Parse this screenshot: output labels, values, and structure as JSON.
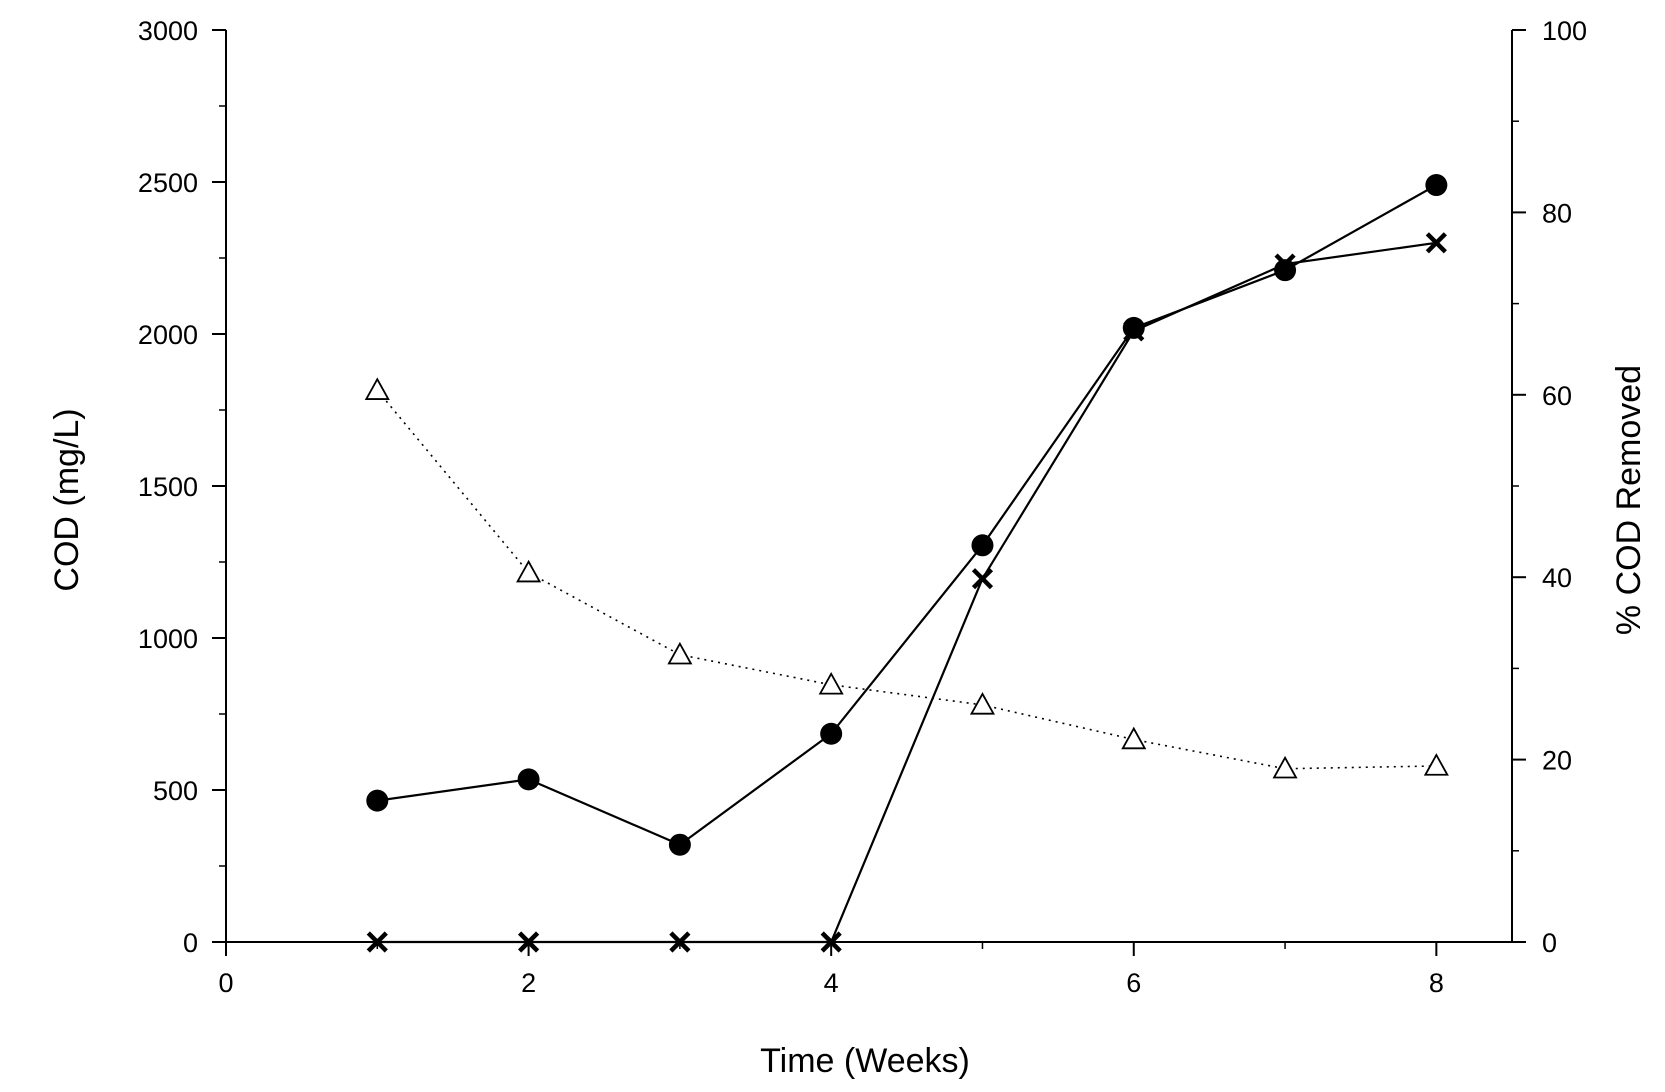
{
  "chart_data": {
    "type": "line",
    "title": "",
    "xlabel": "Time (Weeks)",
    "ylabel": "COD (mg/L)",
    "y2label": "% COD Removed",
    "xlim": [
      0,
      8.5
    ],
    "ylim": [
      0,
      3000
    ],
    "y2lim": [
      0,
      100
    ],
    "xticks": [
      "0",
      "2",
      "4",
      "6",
      "8"
    ],
    "yticks": [
      "0",
      "500",
      "1000",
      "1500",
      "2000",
      "2500",
      "3000"
    ],
    "y2ticks": [
      "0",
      "20",
      "40",
      "60",
      "80",
      "100"
    ],
    "grid": false,
    "legend": "none",
    "series": [
      {
        "name": "COD (filled circles)",
        "axis": "left",
        "marker": "filled-circle",
        "line": "solid",
        "x": [
          1,
          2,
          3,
          4,
          5,
          6,
          7,
          8
        ],
        "values": [
          465,
          535,
          320,
          685,
          1305,
          2020,
          2210,
          2490
        ]
      },
      {
        "name": "COD (crosses)",
        "axis": "left",
        "marker": "x",
        "line": "solid",
        "x": [
          1,
          2,
          3,
          4,
          5,
          6,
          7,
          8
        ],
        "values": [
          0,
          0,
          0,
          0,
          1195,
          2010,
          2230,
          2300
        ]
      },
      {
        "name": "% COD Removed",
        "axis": "right",
        "marker": "open-triangle",
        "line": "dotted",
        "x": [
          1,
          2,
          3,
          4,
          5,
          6,
          7,
          8
        ],
        "values": [
          60.5,
          40.5,
          31.5,
          28.2,
          26.0,
          22.2,
          19.0,
          19.3
        ]
      }
    ]
  }
}
